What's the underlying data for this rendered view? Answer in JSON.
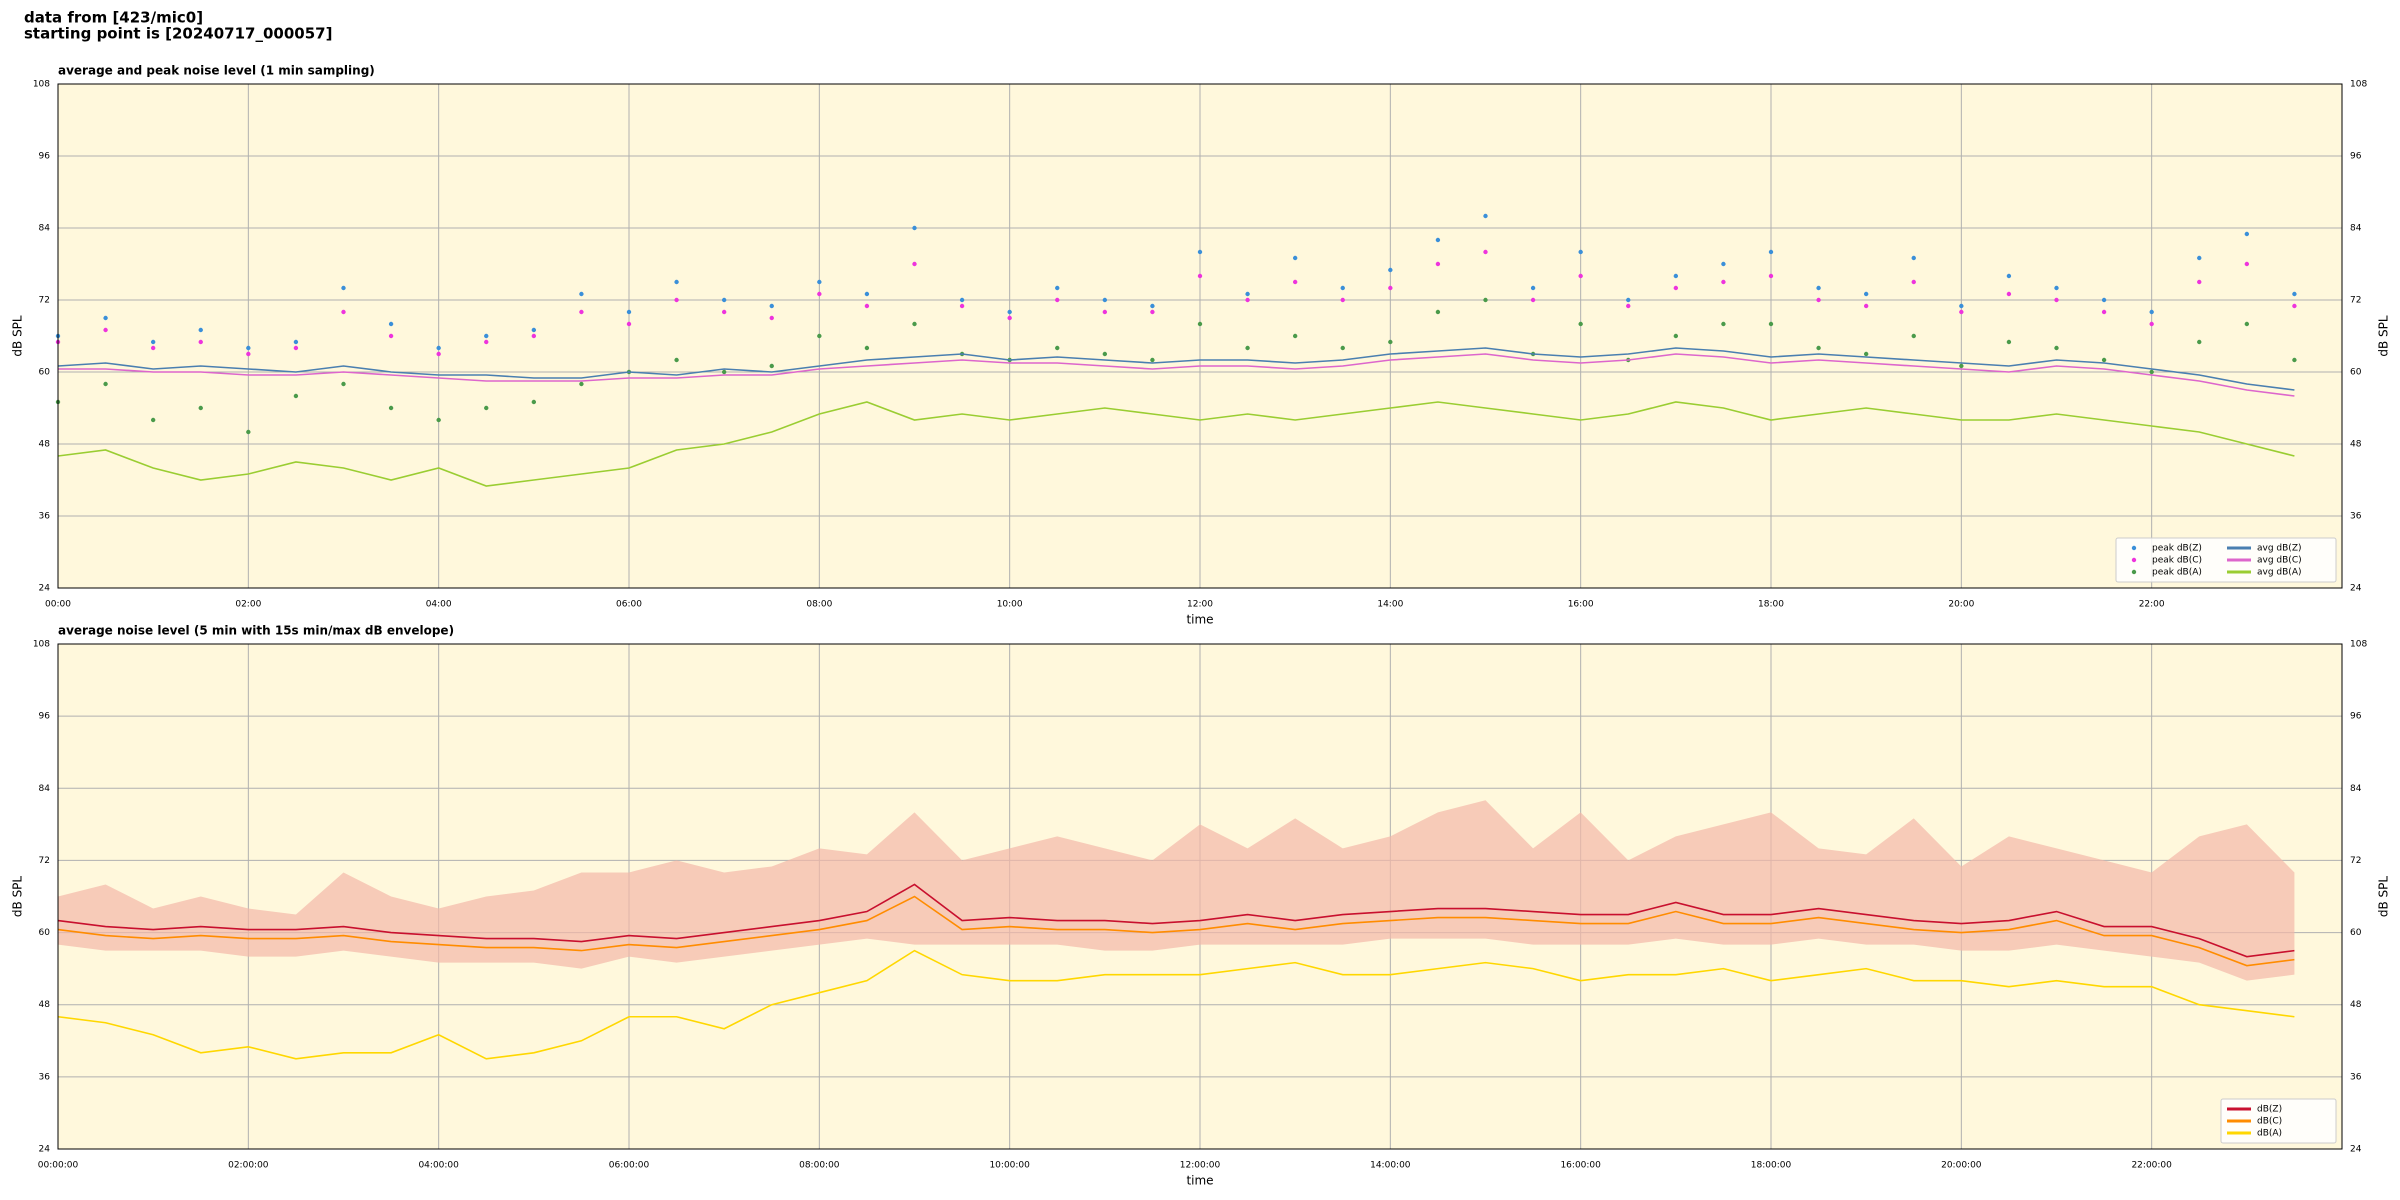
{
  "header": [
    "data from [423/mic0]",
    "starting point is [20240717_000057]"
  ],
  "chart_data": [
    {
      "type": "line",
      "title": "average and peak noise level (1 min sampling)",
      "xlabel": "time",
      "ylabel": "dB SPL",
      "background": "#fff8dc",
      "grid": true,
      "legend": "lower right",
      "legend_columns": 2,
      "xlim": [
        0,
        24
      ],
      "ylim": [
        24,
        108
      ],
      "xticks": [
        {
          "value": 0,
          "label": "00:00"
        },
        {
          "value": 2,
          "label": "02:00"
        },
        {
          "value": 4,
          "label": "04:00"
        },
        {
          "value": 6,
          "label": "06:00"
        },
        {
          "value": 8,
          "label": "08:00"
        },
        {
          "value": 10,
          "label": "10:00"
        },
        {
          "value": 12,
          "label": "12:00"
        },
        {
          "value": 14,
          "label": "14:00"
        },
        {
          "value": 16,
          "label": "16:00"
        },
        {
          "value": 18,
          "label": "18:00"
        },
        {
          "value": 20,
          "label": "20:00"
        },
        {
          "value": 22,
          "label": "22:00"
        }
      ],
      "yticks": [
        24,
        36,
        48,
        60,
        72,
        84,
        96,
        108
      ],
      "x": [
        0,
        0.5,
        1,
        1.5,
        2,
        2.5,
        3,
        3.5,
        4,
        4.5,
        5,
        5.5,
        6,
        6.5,
        7,
        7.5,
        8,
        8.5,
        9,
        9.5,
        10,
        10.5,
        11,
        11.5,
        12,
        12.5,
        13,
        13.5,
        14,
        14.5,
        15,
        15.5,
        16,
        16.5,
        17,
        17.5,
        18,
        18.5,
        19,
        19.5,
        20,
        20.5,
        21,
        21.5,
        22,
        22.5,
        23,
        23.5
      ],
      "series": [
        {
          "name": "peak dB(Z)",
          "style": "dots",
          "color": "#3a8fd9",
          "values": [
            66,
            69,
            65,
            67,
            64,
            65,
            74,
            68,
            64,
            66,
            67,
            73,
            70,
            75,
            72,
            71,
            75,
            73,
            84,
            72,
            70,
            74,
            72,
            71,
            80,
            73,
            79,
            74,
            77,
            82,
            86,
            74,
            80,
            72,
            76,
            78,
            80,
            74,
            73,
            79,
            71,
            76,
            74,
            72,
            70,
            79,
            83,
            73
          ]
        },
        {
          "name": "peak dB(C)",
          "style": "dots",
          "color": "#ee33dd",
          "values": [
            65,
            67,
            64,
            65,
            63,
            64,
            70,
            66,
            63,
            65,
            66,
            70,
            68,
            72,
            70,
            69,
            73,
            71,
            78,
            71,
            69,
            72,
            70,
            70,
            76,
            72,
            75,
            72,
            74,
            78,
            80,
            72,
            76,
            71,
            74,
            75,
            76,
            72,
            71,
            75,
            70,
            73,
            72,
            70,
            68,
            75,
            78,
            71
          ]
        },
        {
          "name": "peak dB(A)",
          "style": "dots",
          "color": "#4a9a4a",
          "values": [
            55,
            58,
            52,
            54,
            50,
            56,
            58,
            54,
            52,
            54,
            55,
            58,
            60,
            62,
            60,
            61,
            66,
            64,
            68,
            63,
            62,
            64,
            63,
            62,
            68,
            64,
            66,
            64,
            65,
            70,
            72,
            63,
            68,
            62,
            66,
            68,
            68,
            64,
            63,
            66,
            61,
            65,
            64,
            62,
            60,
            65,
            68,
            62
          ]
        },
        {
          "name": "avg dB(Z)",
          "style": "line",
          "color": "#4a7fb0",
          "values": [
            61,
            61.5,
            60.5,
            61,
            60.5,
            60,
            61,
            60,
            59.5,
            59.5,
            59,
            59,
            60,
            59.5,
            60.5,
            60,
            61,
            62,
            62.5,
            63,
            62,
            62.5,
            62,
            61.5,
            62,
            62,
            61.5,
            62,
            63,
            63.5,
            64,
            63,
            62.5,
            63,
            64,
            63.5,
            62.5,
            63,
            62.5,
            62,
            61.5,
            61,
            62,
            61.5,
            60.5,
            59.5,
            58,
            57
          ]
        },
        {
          "name": "avg dB(C)",
          "style": "line",
          "color": "#dd66cc",
          "values": [
            60.5,
            60.5,
            60,
            60,
            59.5,
            59.5,
            60,
            59.5,
            59,
            58.5,
            58.5,
            58.5,
            59,
            59,
            59.5,
            59.5,
            60.5,
            61,
            61.5,
            62,
            61.5,
            61.5,
            61,
            60.5,
            61,
            61,
            60.5,
            61,
            62,
            62.5,
            63,
            62,
            61.5,
            62,
            63,
            62.5,
            61.5,
            62,
            61.5,
            61,
            60.5,
            60,
            61,
            60.5,
            59.5,
            58.5,
            57,
            56
          ]
        },
        {
          "name": "avg dB(A)",
          "style": "line",
          "color": "#9acd32",
          "values": [
            46,
            47,
            44,
            42,
            43,
            45,
            44,
            42,
            44,
            41,
            42,
            43,
            44,
            47,
            48,
            50,
            53,
            55,
            52,
            53,
            52,
            53,
            54,
            53,
            52,
            53,
            52,
            53,
            54,
            55,
            54,
            53,
            52,
            53,
            55,
            54,
            52,
            53,
            54,
            53,
            52,
            52,
            53,
            52,
            51,
            50,
            48,
            46
          ]
        }
      ]
    },
    {
      "type": "line",
      "title": "average noise level (5 min with 15s min/max dB envelope)",
      "xlabel": "time",
      "ylabel": "dB SPL",
      "background": "#fff8dc",
      "grid": true,
      "legend": "lower right",
      "legend_columns": 1,
      "xlim": [
        0,
        24
      ],
      "ylim": [
        24,
        108
      ],
      "xticks": [
        {
          "value": 0,
          "label": "00:00:00"
        },
        {
          "value": 2,
          "label": "02:00:00"
        },
        {
          "value": 4,
          "label": "04:00:00"
        },
        {
          "value": 6,
          "label": "06:00:00"
        },
        {
          "value": 8,
          "label": "08:00:00"
        },
        {
          "value": 10,
          "label": "10:00:00"
        },
        {
          "value": 12,
          "label": "12:00:00"
        },
        {
          "value": 14,
          "label": "14:00:00"
        },
        {
          "value": 16,
          "label": "16:00:00"
        },
        {
          "value": 18,
          "label": "18:00:00"
        },
        {
          "value": 20,
          "label": "20:00:00"
        },
        {
          "value": 22,
          "label": "22:00:00"
        }
      ],
      "yticks": [
        24,
        36,
        48,
        60,
        72,
        84,
        96,
        108
      ],
      "x": [
        0,
        0.5,
        1,
        1.5,
        2,
        2.5,
        3,
        3.5,
        4,
        4.5,
        5,
        5.5,
        6,
        6.5,
        7,
        7.5,
        8,
        8.5,
        9,
        9.5,
        10,
        10.5,
        11,
        11.5,
        12,
        12.5,
        13,
        13.5,
        14,
        14.5,
        15,
        15.5,
        16,
        16.5,
        17,
        17.5,
        18,
        18.5,
        19,
        19.5,
        20,
        20.5,
        21,
        21.5,
        22,
        22.5,
        23,
        23.5
      ],
      "envelope": {
        "color": "#f4b8a8",
        "high": [
          66,
          68,
          64,
          66,
          64,
          63,
          70,
          66,
          64,
          66,
          67,
          70,
          70,
          72,
          70,
          71,
          74,
          73,
          80,
          72,
          74,
          76,
          74,
          72,
          78,
          74,
          79,
          74,
          76,
          80,
          82,
          74,
          80,
          72,
          76,
          78,
          80,
          74,
          73,
          79,
          71,
          76,
          74,
          72,
          70,
          76,
          78,
          70
        ],
        "low": [
          58,
          57,
          57,
          57,
          56,
          56,
          57,
          56,
          55,
          55,
          55,
          54,
          56,
          55,
          56,
          57,
          58,
          59,
          58,
          58,
          58,
          58,
          57,
          57,
          58,
          58,
          58,
          58,
          59,
          59,
          59,
          58,
          58,
          58,
          59,
          58,
          58,
          59,
          58,
          58,
          57,
          57,
          58,
          57,
          56,
          55,
          52,
          53
        ]
      },
      "series": [
        {
          "name": "dB(Z)",
          "style": "line",
          "color": "#c8102e",
          "values": [
            62,
            61,
            60.5,
            61,
            60.5,
            60.5,
            61,
            60,
            59.5,
            59,
            59,
            58.5,
            59.5,
            59,
            60,
            61,
            62,
            63.5,
            68,
            62,
            62.5,
            62,
            62,
            61.5,
            62,
            63,
            62,
            63,
            63.5,
            64,
            64,
            63.5,
            63,
            63,
            65,
            63,
            63,
            64,
            63,
            62,
            61.5,
            62,
            63.5,
            61,
            61,
            59,
            56,
            57
          ]
        },
        {
          "name": "dB(C)",
          "style": "line",
          "color": "#ff8c00",
          "values": [
            60.5,
            59.5,
            59,
            59.5,
            59,
            59,
            59.5,
            58.5,
            58,
            57.5,
            57.5,
            57,
            58,
            57.5,
            58.5,
            59.5,
            60.5,
            62,
            66,
            60.5,
            61,
            60.5,
            60.5,
            60,
            60.5,
            61.5,
            60.5,
            61.5,
            62,
            62.5,
            62.5,
            62,
            61.5,
            61.5,
            63.5,
            61.5,
            61.5,
            62.5,
            61.5,
            60.5,
            60,
            60.5,
            62,
            59.5,
            59.5,
            57.5,
            54.5,
            55.5
          ]
        },
        {
          "name": "dB(A)",
          "style": "line",
          "color": "#ffd700",
          "values": [
            46,
            45,
            43,
            40,
            41,
            39,
            40,
            40,
            43,
            39,
            40,
            42,
            46,
            46,
            44,
            48,
            50,
            52,
            57,
            53,
            52,
            52,
            53,
            53,
            53,
            54,
            55,
            53,
            53,
            54,
            55,
            54,
            52,
            53,
            53,
            54,
            52,
            53,
            54,
            52,
            52,
            51,
            52,
            51,
            51,
            48,
            47,
            46
          ]
        }
      ]
    }
  ]
}
